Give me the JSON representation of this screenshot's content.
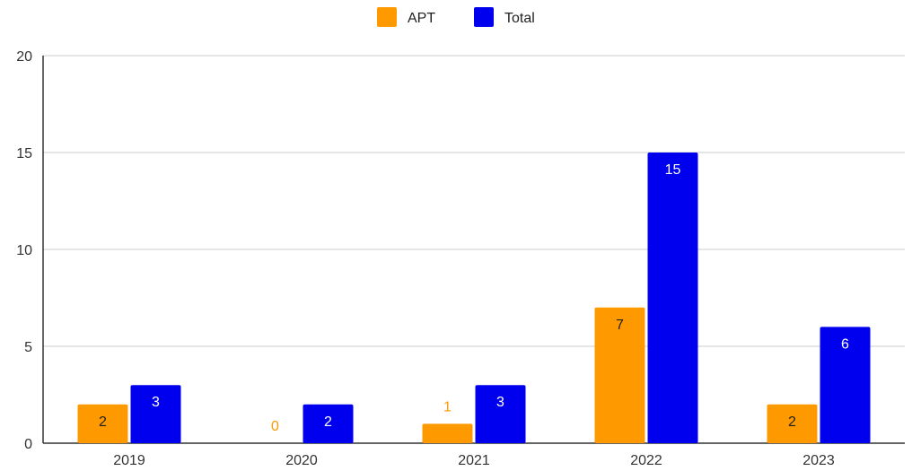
{
  "chart_data": {
    "type": "bar",
    "categories": [
      "2019",
      "2020",
      "2021",
      "2022",
      "2023"
    ],
    "series": [
      {
        "name": "APT",
        "values": [
          2,
          0,
          1,
          7,
          2
        ],
        "color": "#FF9900"
      },
      {
        "name": "Total",
        "values": [
          3,
          2,
          3,
          15,
          6
        ],
        "color": "#0000EE"
      }
    ],
    "ylim": [
      0,
      20
    ],
    "yticks": [
      0,
      5,
      10,
      15,
      20
    ],
    "grid": true,
    "legend_position": "top-center",
    "data_labels": true,
    "label_colors": {
      "inside": "#ffffff",
      "inside_dark": "#222222",
      "outside_apt": "#FF9900"
    }
  }
}
